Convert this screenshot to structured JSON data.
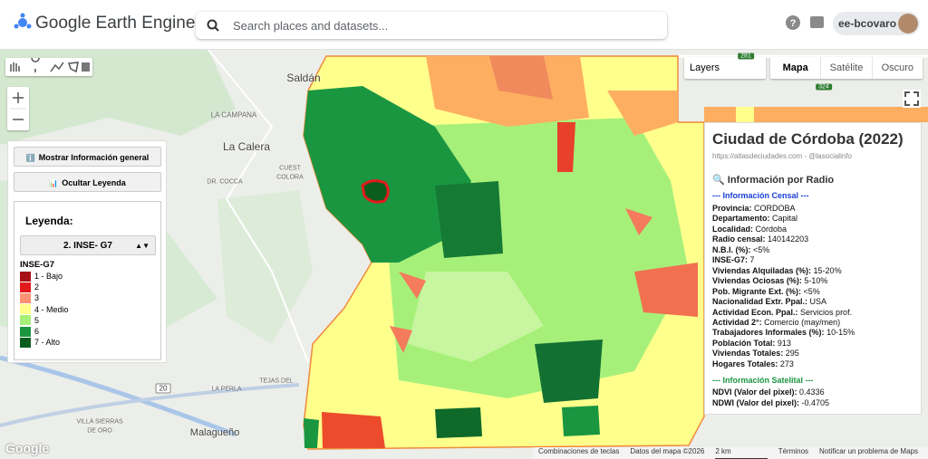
{
  "header": {
    "title": "Google Earth Engine",
    "search_placeholder": "Search places and datasets...",
    "user": "ee-bcovaro"
  },
  "map_controls": {
    "layers": "Layers",
    "map_types": [
      "Mapa",
      "Satélite",
      "Oscuro"
    ]
  },
  "map_labels": [
    "Saldán",
    "LA CAMPANA",
    "La Calera",
    "CUEST",
    "COLORA",
    "DR. COCCA",
    "LA PERLA",
    "TEJAS DEL",
    "Malagueño",
    "VILLA SIERRAS",
    "DE ORO",
    "20",
    "281",
    "324"
  ],
  "left_panel": {
    "buttons": [
      "Mostrar Información general",
      "Ocultar Leyenda"
    ],
    "legend_title": "Leyenda:",
    "selector": "2. INSE- G7",
    "legend_heading": "INSE-G7",
    "items": [
      {
        "label": "1 - Bajo",
        "color": "#a50f15"
      },
      {
        "label": "2",
        "color": "#e31a1c"
      },
      {
        "label": "3",
        "color": "#fc9272"
      },
      {
        "label": "4 - Medio",
        "color": "#ffff8c"
      },
      {
        "label": "5",
        "color": "#a6f07a"
      },
      {
        "label": "6",
        "color": "#1a9641"
      },
      {
        "label": "7 - Alto",
        "color": "#0b5d1e"
      }
    ]
  },
  "info_panel": {
    "title": "Ciudad de Córdoba (2022)",
    "subtitle": "https://atlasdeciudades.com - @lasocialinfo",
    "section_title": "Información por Radio",
    "census_header": "--- Información Censal ---",
    "census": [
      [
        "Provincia:",
        "CORDOBA"
      ],
      [
        "Departamento:",
        "Capital"
      ],
      [
        "Localidad:",
        "Córdoba"
      ],
      [
        "Radio censal:",
        "140142203"
      ],
      [
        "N.B.I. (%):",
        "<5%"
      ],
      [
        "INSE-G7:",
        "7"
      ],
      [
        "Viviendas Alquiladas (%):",
        "15-20%"
      ],
      [
        "Viviendas Ociosas (%):",
        "5-10%"
      ],
      [
        "Pob. Migrante Ext. (%):",
        "<5%"
      ],
      [
        "Nacionalidad Extr. Ppal.:",
        "USA"
      ],
      [
        "Actividad Econ. Ppal.:",
        "Servicios prof."
      ],
      [
        "Actividad 2°:",
        "Comercio (may/men)"
      ],
      [
        "Trabajadores Informales (%):",
        "10-15%"
      ],
      [
        "Población Total:",
        "913"
      ],
      [
        "Viviendas Totales:",
        "295"
      ],
      [
        "Hogares Totales:",
        "273"
      ]
    ],
    "satellite_header": "--- Información Satelital ---",
    "satellite": [
      [
        "NDVI (Valor del pixel):",
        "0.4336"
      ],
      [
        "NDWI (Valor del pixel):",
        "-0.4705"
      ]
    ]
  },
  "footer": {
    "logo": "Google",
    "items": [
      "Combinaciones de teclas",
      "Datos del mapa ©2026",
      "2 km",
      "Términos",
      "Notificar un problema de Maps"
    ]
  }
}
